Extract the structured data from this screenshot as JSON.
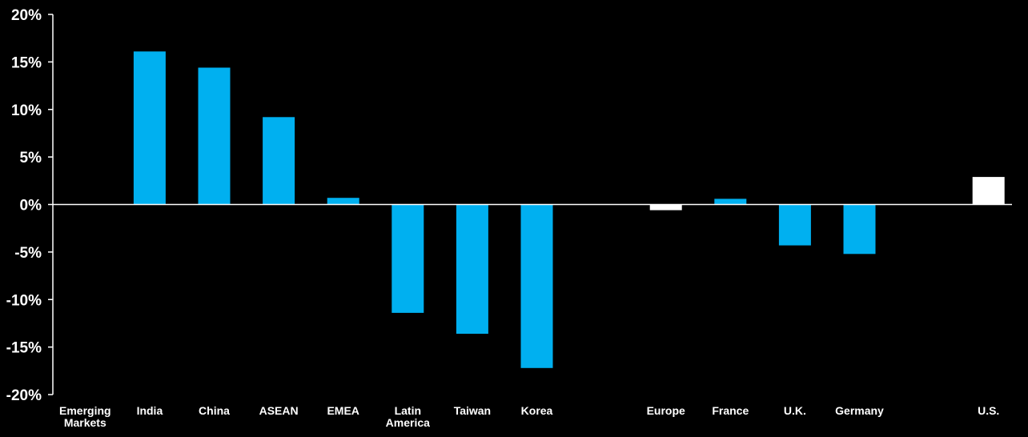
{
  "chart_data": {
    "type": "bar",
    "title": "",
    "xlabel": "",
    "ylabel": "",
    "ylim": [
      -20,
      20
    ],
    "yticks": [
      20,
      15,
      10,
      5,
      0,
      -5,
      -10,
      -15,
      -20
    ],
    "ytick_labels": [
      "20%",
      "15%",
      "10%",
      "5%",
      "0%",
      "-5%",
      "-10%",
      "-15%",
      "-20%"
    ],
    "grid": false,
    "legend": "none",
    "colors": {
      "background": "#000000",
      "bar_primary": "#00b0f0",
      "bar_highlight": "#ffffff",
      "axis": "#ffffff",
      "text": "#ffffff"
    },
    "categories": [
      "Emerging Markets",
      "India",
      "China",
      "ASEAN",
      "EMEA",
      "Latin America",
      "Taiwan",
      "Korea",
      "",
      "Europe",
      "France",
      "U.K.",
      "Germany",
      "",
      "U.S."
    ],
    "category_lines": [
      [
        "Emerging",
        "Markets"
      ],
      [
        "India"
      ],
      [
        "China"
      ],
      [
        "ASEAN"
      ],
      [
        "EMEA"
      ],
      [
        "Latin",
        "America"
      ],
      [
        "Taiwan"
      ],
      [
        "Korea"
      ],
      [],
      [
        "Europe"
      ],
      [
        "France"
      ],
      [
        "U.K."
      ],
      [
        "Germany"
      ],
      [],
      [
        "U.S."
      ]
    ],
    "values": [
      0,
      16.1,
      14.4,
      9.2,
      0.7,
      -11.4,
      -13.6,
      -17.2,
      null,
      -0.6,
      0.6,
      -4.3,
      -5.2,
      null,
      2.9
    ],
    "bar_colors": [
      "#00b0f0",
      "#00b0f0",
      "#00b0f0",
      "#00b0f0",
      "#00b0f0",
      "#00b0f0",
      "#00b0f0",
      "#00b0f0",
      "#00b0f0",
      "#ffffff",
      "#00b0f0",
      "#00b0f0",
      "#00b0f0",
      "#00b0f0",
      "#ffffff"
    ]
  }
}
